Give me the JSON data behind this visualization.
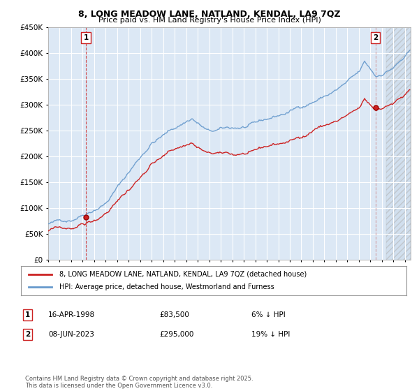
{
  "title1": "8, LONG MEADOW LANE, NATLAND, KENDAL, LA9 7QZ",
  "title2": "Price paid vs. HM Land Registry's House Price Index (HPI)",
  "background_color": "#ffffff",
  "plot_bg_color": "#dce8f5",
  "grid_color": "#ffffff",
  "hpi_color": "#6699cc",
  "price_color": "#cc2222",
  "ylim": [
    0,
    450000
  ],
  "yticks": [
    0,
    50000,
    100000,
    150000,
    200000,
    250000,
    300000,
    350000,
    400000,
    450000
  ],
  "legend_label_price": "8, LONG MEADOW LANE, NATLAND, KENDAL, LA9 7QZ (detached house)",
  "legend_label_hpi": "HPI: Average price, detached house, Westmorland and Furness",
  "annotation1_date": "16-APR-1998",
  "annotation1_price": "£83,500",
  "annotation1_pct": "6% ↓ HPI",
  "annotation2_date": "08-JUN-2023",
  "annotation2_price": "£295,000",
  "annotation2_pct": "19% ↓ HPI",
  "footer": "Contains HM Land Registry data © Crown copyright and database right 2025.\nThis data is licensed under the Open Government Licence v3.0.",
  "marker1_x_year": 1998.29,
  "marker1_y": 83500,
  "marker2_x_year": 2023.44,
  "marker2_y": 295000,
  "xmin": 1995.0,
  "xmax": 2026.5
}
